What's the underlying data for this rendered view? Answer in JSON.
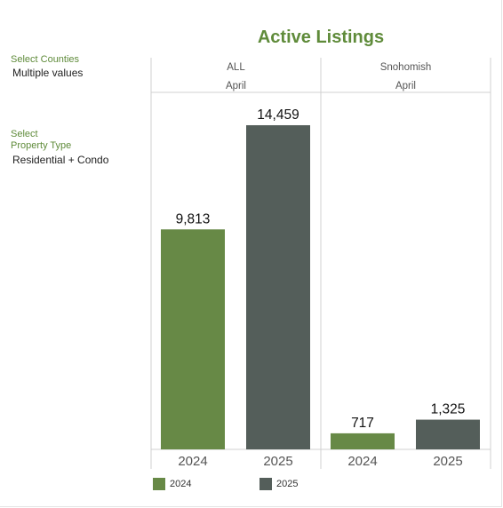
{
  "filters": {
    "counties_label": "Select Counties",
    "counties_value": "Multiple values",
    "property_label_line1": "Select",
    "property_label_line2": "Property Type",
    "property_value": "Residential + Condo"
  },
  "colors": {
    "accent": "#5f8b3a",
    "series_2024": "#678946",
    "series_2025": "#545e5a",
    "gridline": "#d0d0d0"
  },
  "chart_data": {
    "type": "bar",
    "title": "Active Listings",
    "month": "April",
    "panels": [
      {
        "name": "ALL",
        "month": "April",
        "categories": [
          "2024",
          "2025"
        ],
        "values": [
          9813,
          14459
        ],
        "value_labels": [
          "9,813",
          "14,459"
        ]
      },
      {
        "name": "Snohomish",
        "month": "April",
        "categories": [
          "2024",
          "2025"
        ],
        "values": [
          717,
          1325
        ],
        "value_labels": [
          "717",
          "1,325"
        ]
      }
    ],
    "series": [
      {
        "name": "2024"
      },
      {
        "name": "2025"
      }
    ],
    "ylim": [
      0,
      16500
    ],
    "grid": false,
    "legend_position": "bottom-left"
  }
}
